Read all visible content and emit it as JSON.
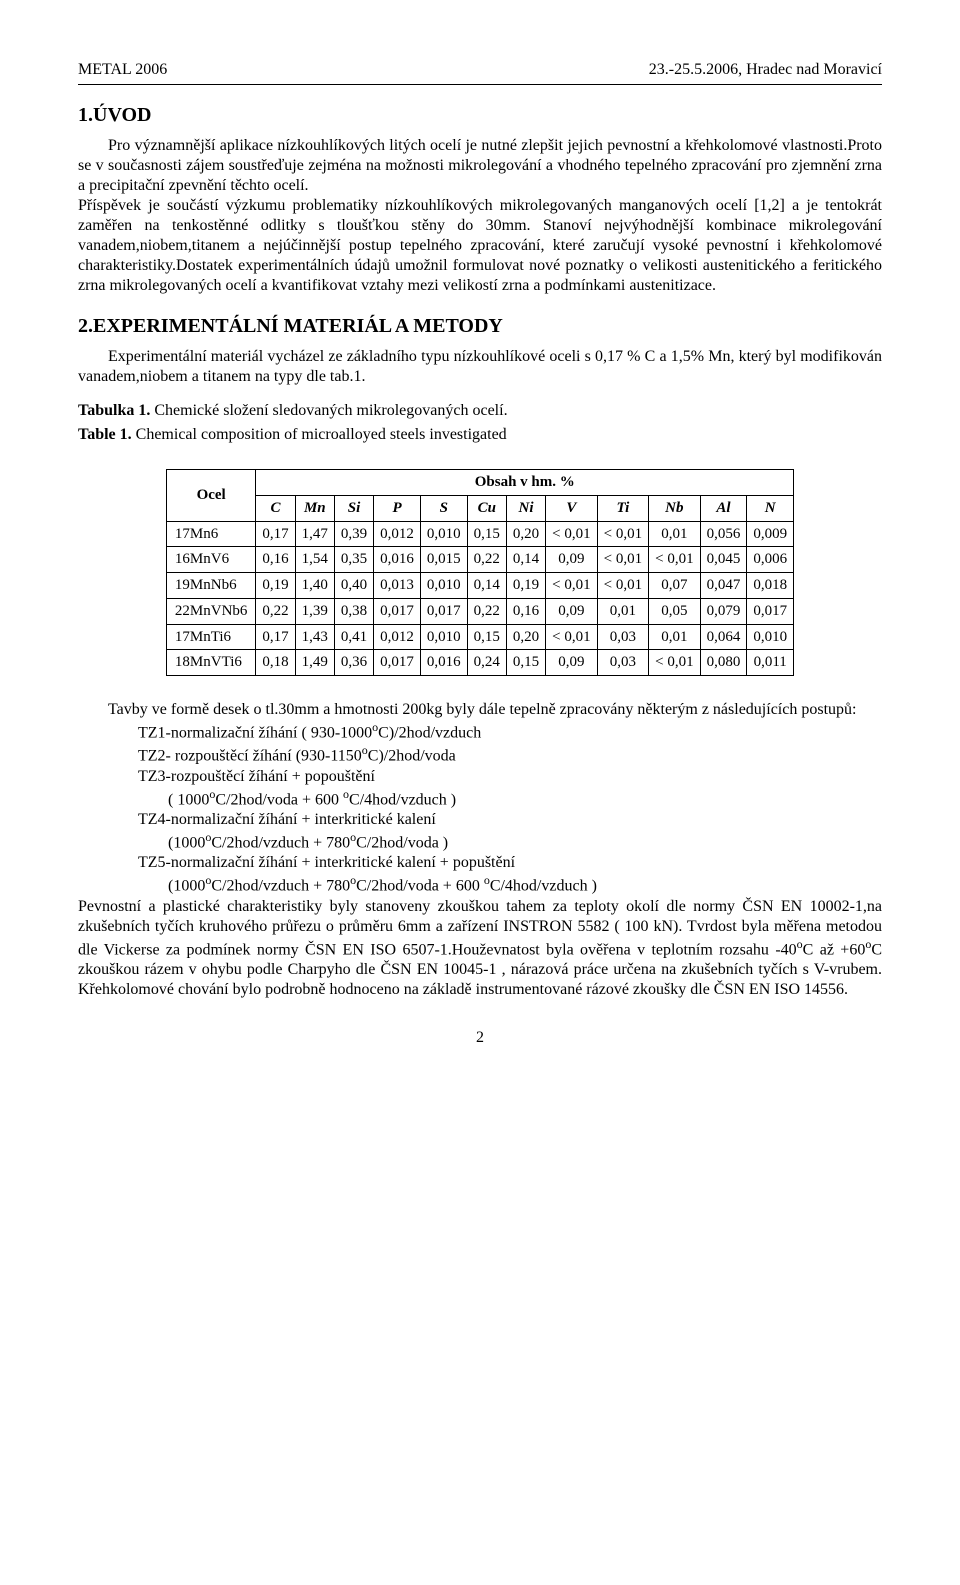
{
  "header": {
    "left": "METAL 2006",
    "right": "23.-25.5.2006, Hradec nad Moravicí"
  },
  "section1": {
    "title": "1.ÚVOD",
    "para": "Pro významnější aplikace nízkouhlíkových litých ocelí je nutné zlepšit jejich pevnostní a křehkolomové vlastnosti.Proto se v současnosti zájem soustřeďuje zejména na možnosti mikrolegování a vhodného tepelného zpracování pro zjemnění zrna a precipitační zpevnění těchto ocelí.",
    "para2": "Příspěvek je součástí výzkumu problematiky nízkouhlíkových mikrolegovaných manganových ocelí [1,2] a je tentokrát zaměřen na tenkostěnné odlitky s tloušťkou stěny do 30mm. Stanoví nejvýhodnější kombinace mikrolegování vanadem,niobem,titanem a nejúčinnější postup tepelného zpracování, které zaručují vysoké pevnostní i křehkolomové charakteristiky.Dostatek experimentálních údajů umožnil formulovat nové poznatky o velikosti austenitického a feritického zrna mikrolegovaných ocelí a kvantifikovat vztahy mezi velikostí zrna a podmínkami austenitizace."
  },
  "section2": {
    "title": "2.EXPERIMENTÁLNÍ  MATERIÁL  A  METODY",
    "intro": "Experimentální materiál vycházel ze základního typu nízkouhlíkové oceli s 0,17 % C a 1,5% Mn, který byl modifikován vanadem,niobem a titanem na typy dle tab.1.",
    "caption_cz_bold": "Tabulka 1.",
    "caption_cz_rest": " Chemické složení sledovaných mikrolegovaných ocelí.",
    "caption_en_bold": "Table 1.",
    "caption_en_rest": " Chemical composition of microalloyed steels investigated"
  },
  "table": {
    "ocel_label": "Ocel",
    "obsah_label": "Obsah v hm. %",
    "columns": [
      "C",
      "Mn",
      "Si",
      "P",
      "S",
      "Cu",
      "Ni",
      "V",
      "Ti",
      "Nb",
      "Al",
      "N"
    ],
    "rows": [
      {
        "steel": "17Mn6",
        "vals": [
          "0,17",
          "1,47",
          "0,39",
          "0,012",
          "0,010",
          "0,15",
          "0,20",
          "< 0,01",
          "< 0,01",
          "0,01",
          "0,056",
          "0,009"
        ]
      },
      {
        "steel": "16MnV6",
        "vals": [
          "0,16",
          "1,54",
          "0,35",
          "0,016",
          "0,015",
          "0,22",
          "0,14",
          "0,09",
          "< 0,01",
          "< 0,01",
          "0,045",
          "0,006"
        ]
      },
      {
        "steel": "19MnNb6",
        "vals": [
          "0,19",
          "1,40",
          "0,40",
          "0,013",
          "0,010",
          "0,14",
          "0,19",
          "< 0,01",
          "< 0,01",
          "0,07",
          "0,047",
          "0,018"
        ]
      },
      {
        "steel": "22MnVNb6",
        "vals": [
          "0,22",
          "1,39",
          "0,38",
          "0,017",
          "0,017",
          "0,22",
          "0,16",
          "0,09",
          "0,01",
          "0,05",
          "0,079",
          "0,017"
        ]
      },
      {
        "steel": "17MnTi6",
        "vals": [
          "0,17",
          "1,43",
          "0,41",
          "0,012",
          "0,010",
          "0,15",
          "0,20",
          "< 0,01",
          "0,03",
          "0,01",
          "0,064",
          "0,010"
        ]
      },
      {
        "steel": "18MnVTi6",
        "vals": [
          "0,18",
          "1,49",
          "0,36",
          "0,017",
          "0,016",
          "0,24",
          "0,15",
          "0,09",
          "0,03",
          "< 0,01",
          "0,080",
          "0,011"
        ]
      }
    ]
  },
  "post_table": {
    "lead": "Tavby ve formě desek o tl.30mm a hmotnosti 200kg byly dále tepelně zpracovány některým z následujících postupů:",
    "tz1": "TZ1-normalizační žíhání ( 930-1000",
    "tz1b": "C)/2hod/vzduch",
    "tz2": "TZ2- rozpouštěcí žíhání (930-1150",
    "tz2b": "C)/2hod/voda",
    "tz3": "TZ3-rozpouštěcí žíhání + popouštění",
    "tz3_line2a": "( 1000",
    "tz3_line2b": "C/2hod/voda + 600 ",
    "tz3_line2c": "C/4hod/vzduch )",
    "tz4": "TZ4-normalizační žíhání + interkritické kalení",
    "tz4_line2a": "(1000",
    "tz4_line2b": "C/2hod/vzduch + 780",
    "tz4_line2c": "C/2hod/voda )",
    "tz5": "TZ5-normalizační žíhání + interkritické kalení + popuštění",
    "tz5_line2a": "(1000",
    "tz5_line2b": "C/2hod/vzduch + 780",
    "tz5_line2c": "C/2hod/voda  + 600 ",
    "tz5_line2d": "C/4hod/vzduch )",
    "tail1": "Pevnostní a plastické charakteristiky byly stanoveny zkouškou tahem za teploty okolí dle normy ČSN EN 10002-1,na zkušebních tyčích kruhového průřezu o průměru 6mm a zařízení INSTRON 5582 ( 100 kN). Tvrdost byla měřena metodou dle Vickerse za podmínek normy ČSN EN ISO 6507-1.Houževnatost byla ověřena v teplotním rozsahu -40",
    "tail2": "C až +60",
    "tail3": "C zkouškou rázem v ohybu podle Charpyho dle ČSN EN 10045-1 , nárazová práce určena na zkušebních tyčích s V-vrubem. Křehkolomové chování bylo podrobně hodnoceno na základě instrumentované rázové zkoušky dle ČSN EN ISO 14556."
  },
  "pagenum": "2"
}
